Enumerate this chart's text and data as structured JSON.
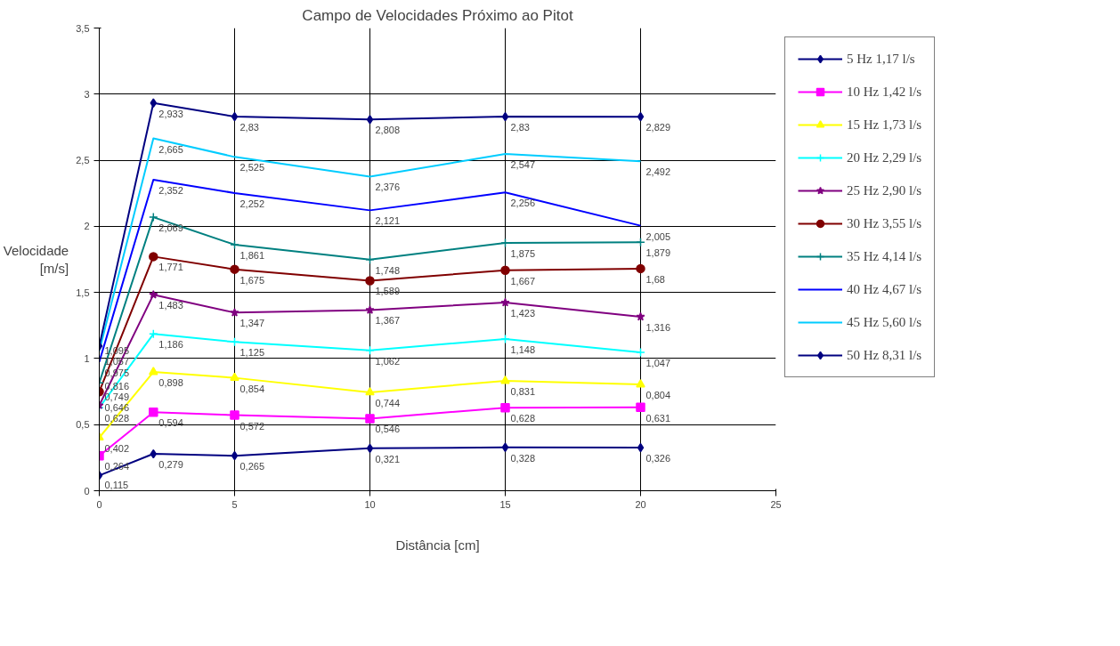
{
  "chart_data": {
    "type": "line",
    "title": "Campo de Velocidades Próximo ao Pitot",
    "xlabel": "Distância [cm]",
    "ylabel": "Velocidade [m/s]",
    "x": [
      0,
      2,
      5,
      10,
      15,
      20
    ],
    "xlim": [
      0,
      25
    ],
    "xticks": [
      0,
      5,
      10,
      15,
      20,
      25
    ],
    "ylim": [
      0,
      3.5
    ],
    "yticks": [
      0,
      {
        "value": 0.5,
        "label": "0,5"
      },
      1,
      {
        "value": 1.5,
        "label": "1,5"
      },
      2,
      {
        "value": 2.5,
        "label": "2,5"
      },
      3,
      {
        "value": 3.5,
        "label": "3,5"
      }
    ],
    "grid": true,
    "legend": "right",
    "line_style": "solid",
    "series": [
      {
        "name": "5 Hz 1,17 l/s",
        "color": "#000080",
        "marker": "diamond",
        "values": [
          0.115,
          0.279,
          0.265,
          0.321,
          0.328,
          0.326
        ],
        "value_labels": [
          "0,115",
          "0,279",
          "0,265",
          "0,321",
          "0,328",
          "0,326"
        ]
      },
      {
        "name": "10 Hz 1,42 l/s",
        "color": "#ff00ff",
        "marker": "square",
        "values": [
          0.264,
          0.594,
          0.572,
          0.546,
          0.628,
          0.631
        ],
        "value_labels": [
          "0,264",
          "0,594",
          "0,572",
          "0,546",
          "0,628",
          "0,631"
        ]
      },
      {
        "name": "15 Hz 1,73 l/s",
        "color": "#ffff00",
        "marker": "triangle",
        "values": [
          0.402,
          0.898,
          0.854,
          0.744,
          0.831,
          0.804
        ],
        "value_labels": [
          "0,402",
          "0,898",
          "0,854",
          "0,744",
          "0,831",
          "0,804"
        ]
      },
      {
        "name": "20 Hz 2,29 l/s",
        "color": "#00ffff",
        "marker": "cross",
        "values": [
          0.628,
          1.186,
          1.125,
          1.062,
          1.148,
          1.047
        ],
        "value_labels": [
          "0,628",
          "1,186",
          "1,125",
          "1,062",
          "1,148",
          "1,047"
        ]
      },
      {
        "name": "25 Hz 2,90 l/s",
        "color": "#800080",
        "marker": "star",
        "values": [
          0.646,
          1.483,
          1.347,
          1.367,
          1.423,
          1.316
        ],
        "value_labels": [
          "0,646",
          "1,483",
          "1,347",
          "1,367",
          "1,423",
          "1,316"
        ]
      },
      {
        "name": "30 Hz 3,55 l/s",
        "color": "#800000",
        "marker": "circle",
        "values": [
          0.749,
          1.771,
          1.675,
          1.589,
          1.667,
          1.68
        ],
        "value_labels": [
          "0,749",
          "1,771",
          "1,675",
          "1,589",
          "1,667",
          "1,68"
        ]
      },
      {
        "name": "35 Hz 4,14 l/s",
        "color": "#008080",
        "marker": "cross",
        "values": [
          0.816,
          2.069,
          1.861,
          1.748,
          1.875,
          1.879
        ],
        "value_labels": [
          "0,816",
          "2,069",
          "1,861",
          "1,748",
          "1,875",
          "1,879"
        ]
      },
      {
        "name": "40 Hz 4,67 l/s",
        "color": "#0000ff",
        "marker": "none",
        "values": [
          0.975,
          2.352,
          2.252,
          2.121,
          2.256,
          2.005
        ],
        "value_labels": [
          "0,975",
          "2,352",
          "2,252",
          "2,121",
          "2,256",
          "2,005"
        ]
      },
      {
        "name": "45 Hz 5,60 l/s",
        "color": "#00ccff",
        "marker": "none",
        "values": [
          1.057,
          2.665,
          2.525,
          2.376,
          2.547,
          2.492
        ],
        "value_labels": [
          "1,057",
          "2,665",
          "2,525",
          "2,376",
          "2,547",
          "2,492"
        ]
      },
      {
        "name": "50 Hz 8,31 l/s",
        "color": "#000080",
        "marker": "diamond",
        "values": [
          1.095,
          2.933,
          2.83,
          2.808,
          2.83,
          2.829
        ],
        "value_labels": [
          "1,095",
          "2,933",
          "2,83",
          "2,808",
          "2,83",
          "2,829"
        ]
      }
    ]
  }
}
